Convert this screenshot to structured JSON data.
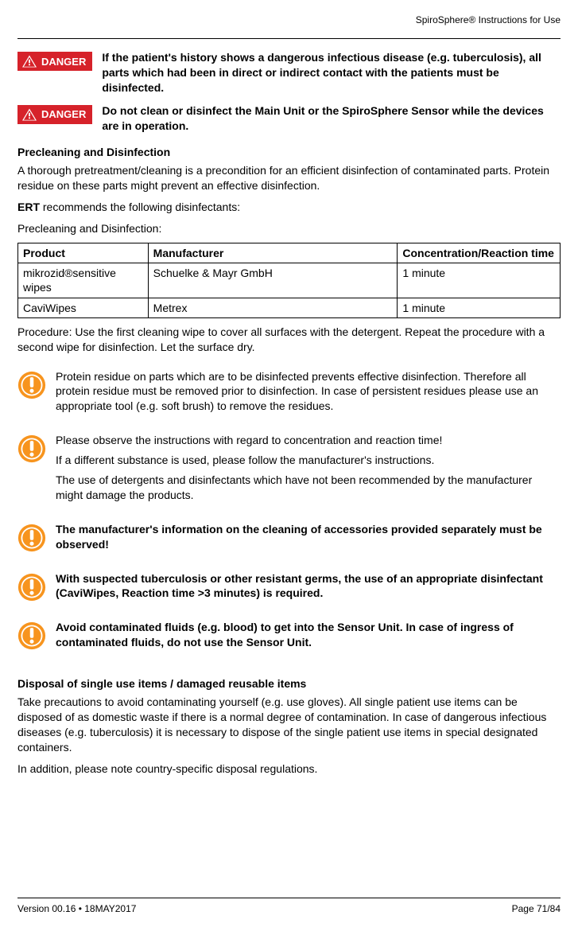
{
  "header": {
    "title": "SpiroSphere® Instructions for Use"
  },
  "danger": {
    "label": "DANGER",
    "items": [
      "If the patient's history shows a dangerous infectious disease (e.g. tuberculosis), all parts which had been in direct or indirect contact with the patients must be disinfected.",
      "Do not clean or disinfect the Main Unit or the SpiroSphere Sensor while the devices are in operation."
    ]
  },
  "section1": {
    "heading": "Precleaning and Disinfection",
    "p1": "A thorough pretreatment/cleaning is a precondition for an efficient disinfection of contaminated parts. Protein residue on these parts might prevent an effective disinfection.",
    "p2": "ERT recommends the following disinfectants:",
    "p2_bold": "ERT",
    "p3": "Precleaning and Disinfection:"
  },
  "table": {
    "columns": [
      "Product",
      "Manufacturer",
      "Concentration/Reaction time"
    ],
    "rows": [
      [
        "mikrozid®sensitive wipes",
        "Schuelke & Mayr GmbH",
        "1 minute"
      ],
      [
        "CaviWipes",
        "Metrex",
        "1 minute"
      ]
    ]
  },
  "procedure": "Procedure: Use the first cleaning wipe to cover all surfaces with the detergent. Repeat the procedure with a second wipe for disinfection. Let the surface dry.",
  "notes": [
    {
      "bold": false,
      "paras": [
        "Protein residue on parts which are to be disinfected prevents effective disinfection. Therefore all protein residue must be removed prior to disinfection. In case of persistent residues please use an appropriate tool (e.g. soft brush) to remove the residues."
      ]
    },
    {
      "bold": false,
      "paras": [
        "Please observe the instructions with regard to concentration and reaction time!",
        "If a different substance is used, please follow the manufacturer's instructions.",
        "The use of detergents and disinfectants which have not been recommended by the manufacturer might damage the products."
      ]
    },
    {
      "bold": true,
      "paras": [
        "The manufacturer's information on the cleaning of accessories provided separately must be observed!"
      ]
    },
    {
      "bold": true,
      "paras": [
        "With suspected tuberculosis or other resistant germs, the use of an appropriate disinfectant (CaviWipes, Reaction time >3 minutes) is required."
      ]
    },
    {
      "bold": true,
      "paras": [
        "Avoid contaminated fluids (e.g. blood) to get into the Sensor Unit. In case of ingress of contaminated fluids, do not use the Sensor Unit."
      ]
    }
  ],
  "section2": {
    "heading": "Disposal of single use items / damaged reusable items",
    "p1": "Take precautions to avoid contaminating yourself (e.g. use gloves). All single patient use items can be disposed of as domestic waste if there is a normal degree of contamination. In case of dangerous infectious diseases (e.g. tuberculosis) it is necessary to dispose of the single patient use items in special designated containers.",
    "p2": "In addition, please note country-specific disposal regulations."
  },
  "footer": {
    "left": "Version 00.16 • 18MAY2017",
    "right": "Page 71/84"
  }
}
